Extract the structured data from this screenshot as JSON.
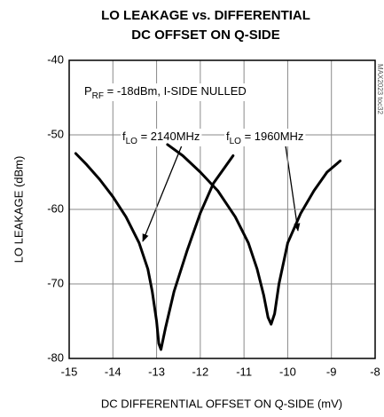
{
  "chart_data": {
    "type": "line",
    "title": [
      "LO LEAKAGE vs. DIFFERENTIAL",
      "DC OFFSET ON Q-SIDE"
    ],
    "xlabel": "DC DIFFERENTIAL OFFSET ON Q-SIDE (mV)",
    "ylabel": "LO LEAKAGE (dBm)",
    "xlim": [
      -15,
      -8
    ],
    "ylim": [
      -80,
      -40
    ],
    "xticks": [
      -15,
      -14,
      -13,
      -12,
      -11,
      -10,
      -9,
      -8
    ],
    "yticks": [
      -80,
      -70,
      -60,
      -50,
      -40
    ],
    "grid": true,
    "annotations": [
      {
        "main": "P",
        "sub": "RF",
        "rest": " = -18dBm, I-SIDE NULLED"
      },
      {
        "main": "f",
        "sub": "LO",
        "rest": " = 2140MHz"
      },
      {
        "main": "f",
        "sub": "LO",
        "rest": " = 1960MHz"
      }
    ],
    "watermark": "MAX2023 toc32",
    "series": [
      {
        "color": "#000000",
        "x": [
          -14.85,
          -14.6,
          -14.3,
          -14.0,
          -13.7,
          -13.4,
          -13.2,
          -13.1,
          -13.0,
          -12.95,
          -12.9,
          -12.8,
          -12.6,
          -12.3,
          -12.0,
          -11.7,
          -11.25
        ],
        "values": [
          -52.5,
          -54,
          -56,
          -58.3,
          -61,
          -64.5,
          -68,
          -71,
          -75,
          -78,
          -78.8,
          -76,
          -71,
          -65.5,
          -60.5,
          -56.5,
          -52.8
        ]
      },
      {
        "color": "#000000",
        "x": [
          -12.75,
          -12.4,
          -12.0,
          -11.6,
          -11.2,
          -10.9,
          -10.7,
          -10.55,
          -10.45,
          -10.38,
          -10.3,
          -10.2,
          -10.0,
          -9.7,
          -9.4,
          -9.1,
          -8.8
        ],
        "values": [
          -51.3,
          -52.8,
          -55,
          -57.5,
          -61,
          -64.5,
          -68,
          -71.5,
          -74.5,
          -75.4,
          -74,
          -70,
          -64.5,
          -60.5,
          -57.5,
          -55,
          -53.5
        ]
      }
    ]
  }
}
